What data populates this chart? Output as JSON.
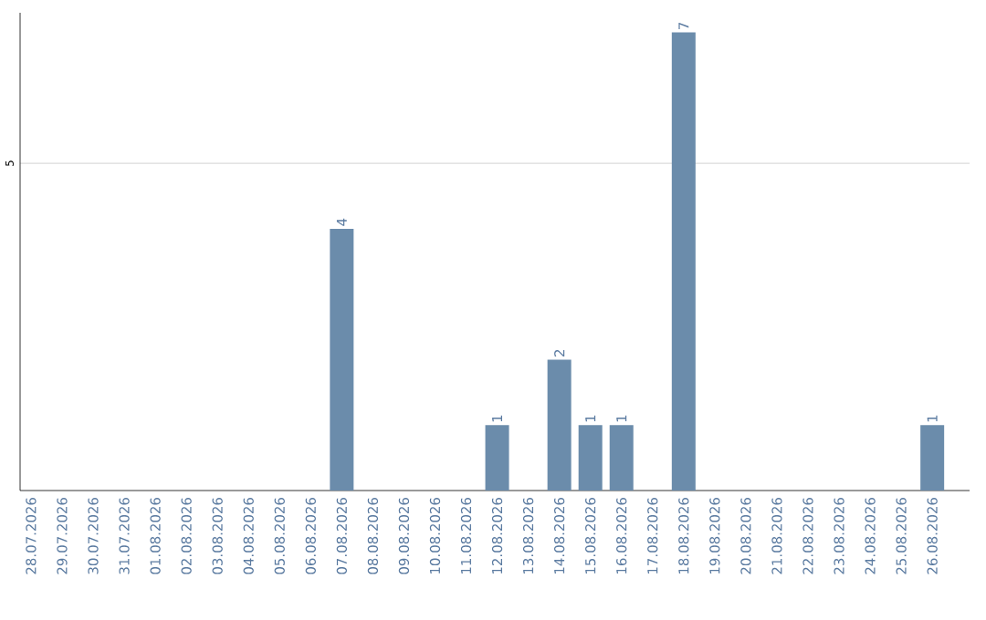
{
  "chart_data": {
    "type": "bar",
    "categories": [
      "28.07.2026",
      "29.07.2026",
      "30.07.2026",
      "31.07.2026",
      "01.08.2026",
      "02.08.2026",
      "03.08.2026",
      "04.08.2026",
      "05.08.2026",
      "06.08.2026",
      "07.08.2026",
      "08.08.2026",
      "09.08.2026",
      "10.08.2026",
      "11.08.2026",
      "12.08.2026",
      "13.08.2026",
      "14.08.2026",
      "15.08.2026",
      "16.08.2026",
      "17.08.2026",
      "18.08.2026",
      "19.08.2026",
      "20.08.2026",
      "21.08.2026",
      "22.08.2026",
      "23.08.2026",
      "24.08.2026",
      "25.08.2026",
      "26.08.2026"
    ],
    "values": [
      0,
      0,
      0,
      0,
      0,
      0,
      0,
      0,
      0,
      0,
      4,
      0,
      0,
      0,
      0,
      1,
      0,
      2,
      1,
      1,
      0,
      7,
      0,
      0,
      0,
      0,
      0,
      0,
      0,
      1
    ],
    "value_labels": [
      null,
      null,
      null,
      null,
      null,
      null,
      null,
      null,
      null,
      null,
      "4",
      null,
      null,
      null,
      null,
      "1",
      null,
      "2",
      "1",
      "1",
      null,
      "7",
      null,
      null,
      null,
      null,
      null,
      null,
      null,
      "1"
    ],
    "color": "#6b8cab",
    "ylim": [
      0,
      7.3
    ],
    "yticks": [
      5
    ],
    "grid": "y"
  }
}
